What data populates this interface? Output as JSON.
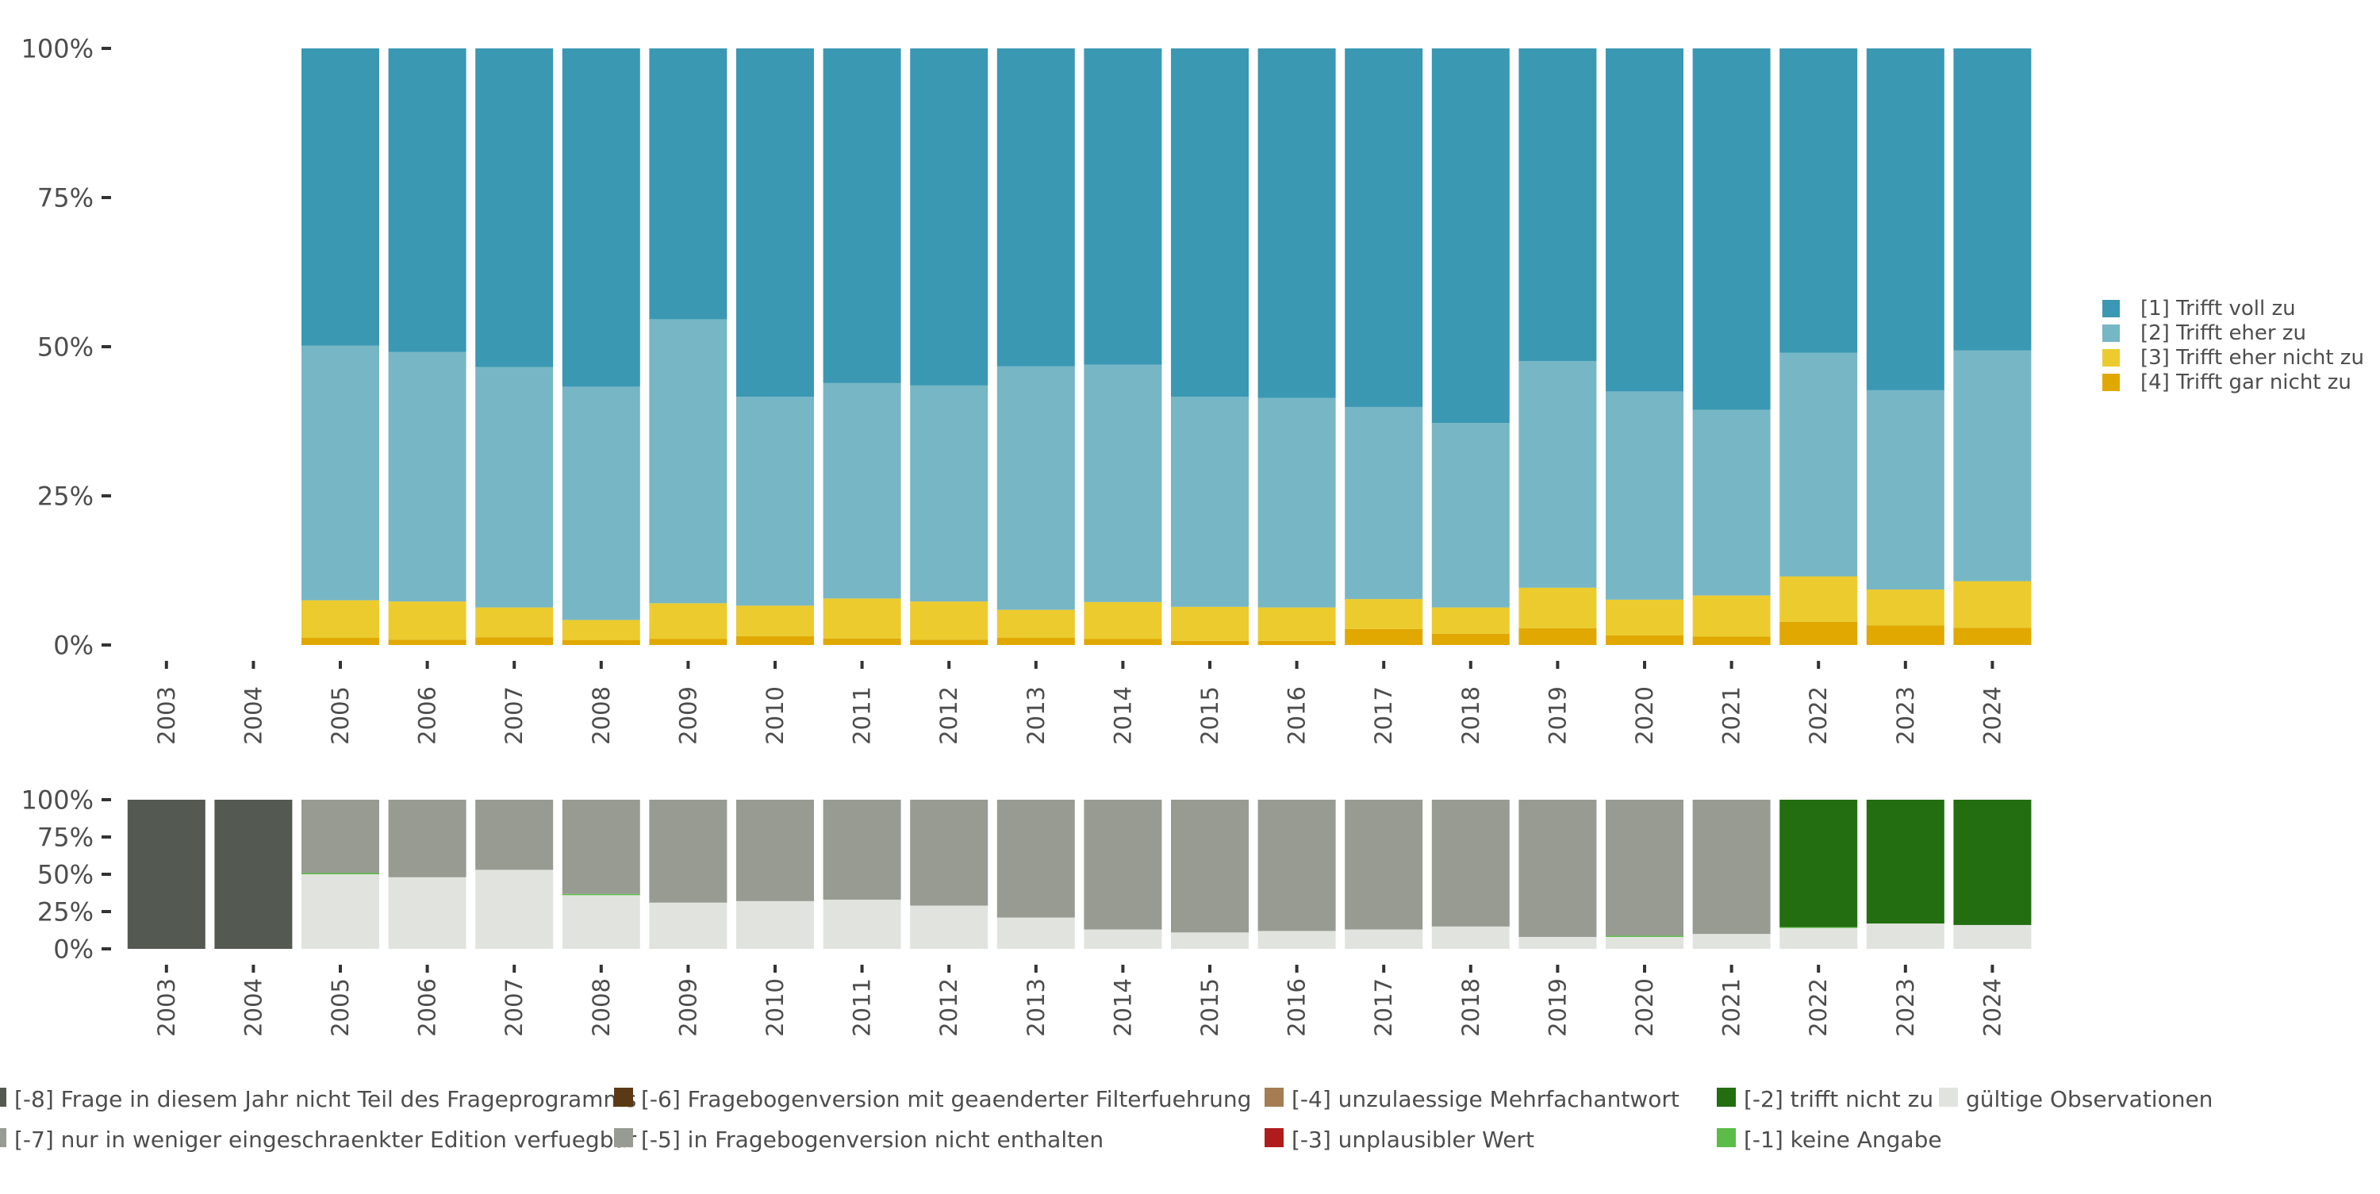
{
  "chart_data": [
    {
      "type": "bar",
      "stacked": true,
      "title": "",
      "xlabel": "",
      "ylabel": "",
      "ylim": [
        0,
        100
      ],
      "y_ticks": [
        "0%",
        "25%",
        "50%",
        "75%",
        "100%"
      ],
      "categories": [
        "2003",
        "2004",
        "2005",
        "2006",
        "2007",
        "2008",
        "2009",
        "2010",
        "2011",
        "2012",
        "2013",
        "2014",
        "2015",
        "2016",
        "2017",
        "2018",
        "2019",
        "2020",
        "2021",
        "2022",
        "2023",
        "2024"
      ],
      "legend_position": "right",
      "series": [
        {
          "name": "[4] Trifft gar nicht zu",
          "color": "#e0a800",
          "values": [
            null,
            null,
            1.2,
            0.9,
            1.3,
            0.8,
            1.0,
            1.5,
            1.1,
            0.9,
            1.2,
            1.0,
            0.7,
            0.7,
            2.7,
            1.9,
            2.8,
            1.6,
            1.4,
            3.9,
            3.3,
            2.9
          ]
        },
        {
          "name": "[3] Trifft eher nicht zu",
          "color": "#ebcb2e",
          "values": [
            null,
            null,
            6.3,
            6.4,
            5.0,
            3.4,
            6.0,
            5.1,
            6.7,
            6.4,
            4.7,
            6.2,
            5.7,
            5.6,
            5.0,
            4.4,
            6.8,
            6.0,
            6.9,
            7.6,
            6.0,
            7.8
          ]
        },
        {
          "name": "[2] Trifft eher zu",
          "color": "#77b6c5",
          "values": [
            null,
            null,
            42.7,
            41.8,
            40.3,
            39.1,
            47.6,
            35.0,
            36.1,
            36.2,
            40.8,
            39.8,
            35.2,
            35.1,
            32.2,
            30.9,
            38.0,
            34.9,
            31.1,
            37.5,
            33.4,
            38.7
          ]
        },
        {
          "name": "[1] Trifft voll zu",
          "color": "#3a98b3",
          "values": [
            null,
            null,
            49.8,
            50.9,
            53.4,
            56.7,
            45.4,
            58.4,
            56.1,
            56.5,
            53.3,
            53.0,
            58.4,
            58.6,
            60.1,
            62.8,
            52.4,
            57.5,
            60.6,
            51.0,
            57.3,
            50.6
          ]
        }
      ],
      "legend": [
        {
          "label": "[1] Trifft voll zu",
          "color": "#3a98b3"
        },
        {
          "label": "[2] Trifft eher zu",
          "color": "#77b6c5"
        },
        {
          "label": "[3] Trifft eher nicht zu",
          "color": "#ebcb2e"
        },
        {
          "label": "[4] Trifft gar nicht zu",
          "color": "#e0a800"
        }
      ]
    },
    {
      "type": "bar",
      "stacked": true,
      "title": "",
      "xlabel": "",
      "ylabel": "",
      "ylim": [
        0,
        100
      ],
      "y_ticks": [
        "0%",
        "25%",
        "50%",
        "75%",
        "100%"
      ],
      "categories": [
        "2003",
        "2004",
        "2005",
        "2006",
        "2007",
        "2008",
        "2009",
        "2010",
        "2011",
        "2012",
        "2013",
        "2014",
        "2015",
        "2016",
        "2017",
        "2018",
        "2019",
        "2020",
        "2021",
        "2022",
        "2023",
        "2024"
      ],
      "legend_position": "bottom",
      "series": [
        {
          "name": "gültige Observationen",
          "color": "#e1e4de",
          "values": [
            0,
            0,
            50,
            48,
            53,
            36,
            31,
            32,
            33,
            29,
            21,
            13,
            11,
            12,
            13,
            15,
            8,
            8,
            10,
            14,
            17,
            16
          ]
        },
        {
          "name": "[-1] keine Angabe",
          "color": "#5bbd47",
          "values": [
            0,
            0,
            0.8,
            0,
            0,
            0.8,
            0,
            0,
            0,
            0,
            0,
            0,
            0,
            0,
            0,
            0,
            0,
            0.8,
            0,
            0.6,
            0,
            0
          ]
        },
        {
          "name": "[-2] trifft nicht zu",
          "color": "#226e10",
          "values": [
            0,
            0,
            0,
            0,
            0,
            0,
            0,
            0,
            0,
            0,
            0,
            0,
            0,
            0,
            0,
            0,
            0,
            0,
            0,
            85.4,
            83,
            84
          ]
        },
        {
          "name": "[-5] in Fragebogenversion nicht enthalten",
          "color": "#979b92",
          "values": [
            0,
            0,
            49.2,
            52,
            47,
            63.2,
            69,
            68,
            67,
            71,
            79,
            87,
            89,
            88,
            87,
            85,
            92,
            91.2,
            90,
            0,
            0,
            0
          ]
        },
        {
          "name": "[-8] Frage in diesem Jahr nicht Teil des Frageprogramms",
          "color": "#545a52",
          "values": [
            100,
            100,
            0,
            0,
            0,
            0,
            0,
            0,
            0,
            0,
            0,
            0,
            0,
            0,
            0,
            0,
            0,
            0,
            0,
            0,
            0,
            0
          ]
        }
      ],
      "legend": [
        {
          "label": "[-8] Frage in diesem Jahr nicht Teil des Frageprogramms",
          "color": "#545a52"
        },
        {
          "label": "[-7] nur in weniger eingeschraenkter Edition verfuegbar",
          "color": "#979b92"
        },
        {
          "label": "[-6] Fragebogenversion mit geaenderter Filterfuehrung",
          "color": "#5a3a16"
        },
        {
          "label": "[-5] in Fragebogenversion nicht enthalten",
          "color": "#979b92"
        },
        {
          "label": "[-4] unzulaessige Mehrfachantwort",
          "color": "#a67c52"
        },
        {
          "label": "[-3] unplausibler Wert",
          "color": "#b01c1c"
        },
        {
          "label": "[-2] trifft nicht zu",
          "color": "#226e10"
        },
        {
          "label": "[-1] keine Angabe",
          "color": "#5bbd47"
        },
        {
          "label": "gültige Observationen",
          "color": "#e1e4de"
        }
      ]
    }
  ]
}
